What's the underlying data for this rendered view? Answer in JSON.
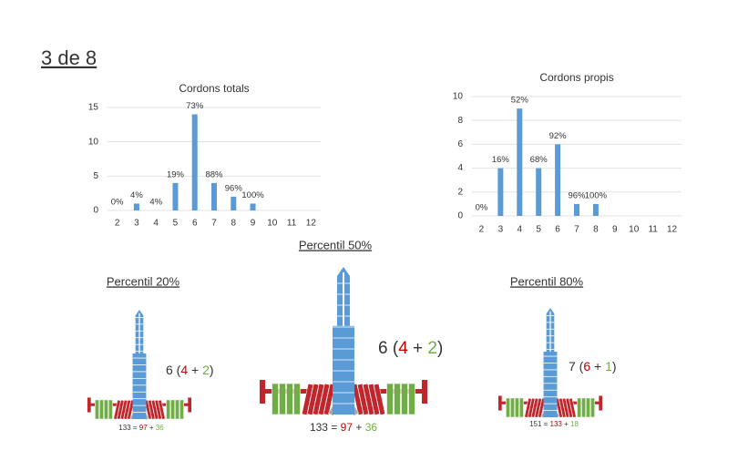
{
  "title": "3 de 8",
  "chart_data": [
    {
      "type": "bar",
      "title": "Cordons totals",
      "categories": [
        "2",
        "3",
        "4",
        "5",
        "6",
        "7",
        "8",
        "9",
        "10",
        "11",
        "12"
      ],
      "values": [
        0,
        1,
        0,
        4,
        14,
        4,
        2,
        1,
        0,
        0,
        0
      ],
      "bar_labels": [
        "0%",
        "4%",
        "4%",
        "19%",
        "73%",
        "88%",
        "96%",
        "100%",
        null,
        null,
        null
      ],
      "color": "#5b9bd5",
      "ylim": [
        0,
        15
      ],
      "yticks": [
        0,
        5,
        10,
        15
      ],
      "grid": true
    },
    {
      "type": "bar",
      "title": "Cordons propis",
      "categories": [
        "2",
        "3",
        "4",
        "5",
        "6",
        "7",
        "8",
        "9",
        "10",
        "11",
        "12"
      ],
      "values": [
        0,
        4,
        9,
        4,
        6,
        1,
        1,
        0,
        0,
        0,
        0
      ],
      "bar_labels": [
        "0%",
        "16%",
        "52%",
        "68%",
        "92%",
        "96%",
        "100%",
        null,
        null,
        null,
        null
      ],
      "color": "#5b9bd5",
      "ylim": [
        0,
        10
      ],
      "yticks": [
        0,
        2,
        4,
        6,
        8,
        10
      ],
      "grid": true
    }
  ],
  "percentiles": [
    {
      "label": "Percentil 20%",
      "formula": [
        {
          "text": "6 (",
          "color": "#333333"
        },
        {
          "text": "4",
          "color": "#c00000"
        },
        {
          "text": " + ",
          "color": "#333333"
        },
        {
          "text": "2",
          "color": "#70ad47"
        },
        {
          "text": ")",
          "color": "#333333"
        }
      ],
      "equation": [
        {
          "text": "133 = ",
          "color": "#333333"
        },
        {
          "text": "97",
          "color": "#c00000"
        },
        {
          "text": " + ",
          "color": "#333333"
        },
        {
          "text": "36",
          "color": "#70ad47"
        }
      ]
    },
    {
      "label": "Percentil 50%",
      "formula": [
        {
          "text": "6 (",
          "color": "#333333"
        },
        {
          "text": "4",
          "color": "#c00000"
        },
        {
          "text": " + ",
          "color": "#333333"
        },
        {
          "text": "2",
          "color": "#70ad47"
        },
        {
          "text": ")",
          "color": "#333333"
        }
      ],
      "equation": [
        {
          "text": "133 = ",
          "color": "#333333"
        },
        {
          "text": "97",
          "color": "#c00000"
        },
        {
          "text": " + ",
          "color": "#333333"
        },
        {
          "text": "36",
          "color": "#70ad47"
        }
      ]
    },
    {
      "label": "Percentil 80%",
      "formula": [
        {
          "text": "7 (",
          "color": "#333333"
        },
        {
          "text": "6",
          "color": "#c00000"
        },
        {
          "text": " + ",
          "color": "#333333"
        },
        {
          "text": "1",
          "color": "#70ad47"
        },
        {
          "text": ")",
          "color": "#333333"
        }
      ],
      "equation": [
        {
          "text": "151 = ",
          "color": "#333333"
        },
        {
          "text": "133",
          "color": "#c00000"
        },
        {
          "text": " + ",
          "color": "#333333"
        },
        {
          "text": "18",
          "color": "#70ad47"
        }
      ]
    }
  ]
}
